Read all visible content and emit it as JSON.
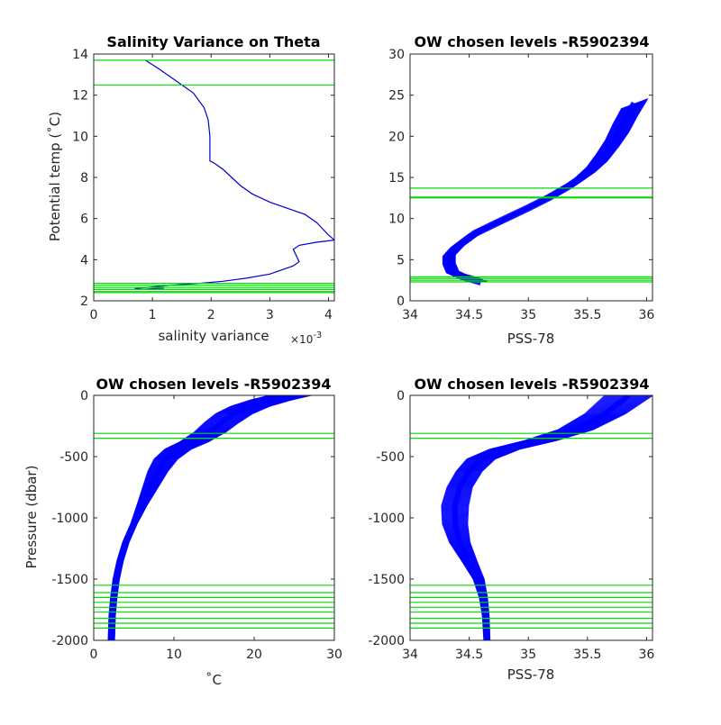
{
  "chart_data": [
    {
      "id": "p1",
      "type": "line",
      "title": "Salinity Variance on Theta",
      "xlabel": "salinity variance",
      "x_exponent_base": "×10",
      "x_exponent_power": "-3",
      "ylabel": "Potential temp (˚C)",
      "xlim": [
        0,
        0.0041
      ],
      "ylim": [
        2,
        14
      ],
      "xticks": [
        0,
        0.001,
        0.002,
        0.003,
        0.004
      ],
      "xticklabels": [
        "0",
        "1",
        "2",
        "3",
        "4"
      ],
      "yticks": [
        2,
        4,
        6,
        8,
        10,
        12,
        14
      ],
      "yticklabels": [
        "2",
        "4",
        "6",
        "8",
        "10",
        "12",
        "14"
      ],
      "colors": {
        "profile": "#0000cc",
        "levels": "#00dd00"
      },
      "series": [
        {
          "values": [
            [
              0.00088,
              13.7
            ],
            [
              0.0011,
              13.3
            ],
            [
              0.0013,
              12.9
            ],
            [
              0.0015,
              12.5
            ],
            [
              0.0017,
              12.1
            ],
            [
              0.0018,
              11.7
            ],
            [
              0.00188,
              11.4
            ],
            [
              0.00195,
              10.8
            ],
            [
              0.00198,
              10.0
            ],
            [
              0.00198,
              9.3
            ],
            [
              0.00198,
              8.8
            ],
            [
              0.00205,
              8.7
            ],
            [
              0.0022,
              8.4
            ],
            [
              0.00235,
              8.0
            ],
            [
              0.0025,
              7.6
            ],
            [
              0.0027,
              7.2
            ],
            [
              0.003,
              6.8
            ],
            [
              0.0033,
              6.5
            ],
            [
              0.0036,
              6.2
            ],
            [
              0.0038,
              5.8
            ],
            [
              0.0039,
              5.5
            ],
            [
              0.004,
              5.2
            ],
            [
              0.0041,
              4.95
            ],
            [
              0.0038,
              4.85
            ],
            [
              0.0035,
              4.7
            ],
            [
              0.0034,
              4.5
            ],
            [
              0.00345,
              4.2
            ],
            [
              0.0035,
              3.9
            ],
            [
              0.0034,
              3.7
            ],
            [
              0.003,
              3.3
            ],
            [
              0.0026,
              3.1
            ],
            [
              0.0022,
              2.95
            ],
            [
              0.0018,
              2.85
            ],
            [
              0.0013,
              2.75
            ],
            [
              0.0009,
              2.65
            ],
            [
              0.0007,
              2.6
            ],
            [
              0.0008,
              2.55
            ],
            [
              0.0012,
              2.62
            ],
            [
              0.0009,
              2.57
            ]
          ]
        }
      ],
      "levels": [
        13.7,
        12.5,
        2.85,
        2.75,
        2.65,
        2.55,
        2.45,
        2.4
      ]
    },
    {
      "id": "p2",
      "type": "line",
      "title": "OW chosen levels -R5902394",
      "xlabel": "PSS-78",
      "ylabel": "",
      "xlim": [
        34,
        36.05
      ],
      "ylim": [
        0,
        30
      ],
      "xticks": [
        34,
        34.5,
        35,
        35.5,
        36
      ],
      "xticklabels": [
        "34",
        "34.5",
        "35",
        "35.5",
        "36"
      ],
      "yticks": [
        0,
        5,
        10,
        15,
        20,
        25,
        30
      ],
      "yticklabels": [
        "0",
        "5",
        "10",
        "15",
        "20",
        "25",
        "30"
      ],
      "colors": {
        "profile": "#0000ff",
        "levels": "#00dd00"
      },
      "series": [
        {
          "values": [
            [
              34.6,
              2.3
            ],
            [
              34.45,
              2.9
            ],
            [
              34.36,
              3.5
            ],
            [
              34.33,
              4.5
            ],
            [
              34.33,
              5.5
            ],
            [
              34.4,
              6.6
            ],
            [
              34.55,
              8.2
            ],
            [
              34.78,
              9.8
            ],
            [
              35.0,
              11.3
            ],
            [
              35.18,
              12.6
            ],
            [
              35.35,
              14.0
            ],
            [
              35.48,
              15.3
            ],
            [
              35.58,
              16.6
            ],
            [
              35.67,
              18.3
            ],
            [
              35.75,
              20.0
            ],
            [
              35.82,
              22.0
            ],
            [
              35.9,
              24.0
            ]
          ]
        }
      ],
      "levels": [
        13.7,
        12.6,
        12.5,
        2.9,
        2.7,
        2.5,
        2.3
      ],
      "level_groups": [
        {
          "values": [
            12.5,
            12.6
          ],
          "weight": "thick"
        },
        {
          "values": [
            13.7
          ],
          "weight": "thin"
        },
        {
          "values": [
            2.3,
            2.5,
            2.7,
            2.9
          ],
          "weight": "thick"
        }
      ]
    },
    {
      "id": "p3",
      "type": "line",
      "title": "OW chosen levels -R5902394",
      "xlabel": "˚C",
      "ylabel": "Pressure (dbar)",
      "xlim": [
        0,
        30
      ],
      "ylim": [
        -2000,
        0
      ],
      "xticks": [
        0,
        10,
        20,
        30
      ],
      "xticklabels": [
        "0",
        "10",
        "20",
        "30"
      ],
      "yticks": [
        -2000,
        -1500,
        -1000,
        -500,
        0
      ],
      "yticklabels": [
        "-2000",
        "-1500",
        "-1000",
        "-500",
        "0"
      ],
      "colors": {
        "profile": "#0000ff",
        "levels": "#00dd00"
      },
      "series": [
        {
          "values": [
            [
              24.5,
              0
            ],
            [
              22.0,
              -40
            ],
            [
              19.5,
              -90
            ],
            [
              17.5,
              -150
            ],
            [
              16.0,
              -220
            ],
            [
              14.5,
              -300
            ],
            [
              12.5,
              -380
            ],
            [
              10.5,
              -440
            ],
            [
              9.0,
              -520
            ],
            [
              8.0,
              -620
            ],
            [
              7.0,
              -760
            ],
            [
              6.0,
              -900
            ],
            [
              5.0,
              -1050
            ],
            [
              4.0,
              -1200
            ],
            [
              3.3,
              -1350
            ],
            [
              2.8,
              -1500
            ],
            [
              2.5,
              -1650
            ],
            [
              2.3,
              -1800
            ],
            [
              2.2,
              -2000
            ]
          ]
        }
      ],
      "levels": [
        -310,
        -350,
        -1550,
        -1610,
        -1650,
        -1690,
        -1730,
        -1770,
        -1820,
        -1860,
        -1900
      ]
    },
    {
      "id": "p4",
      "type": "line",
      "title": "OW chosen levels -R5902394",
      "xlabel": "PSS-78",
      "ylabel": "",
      "xlim": [
        34,
        36.05
      ],
      "ylim": [
        -2000,
        0
      ],
      "xticks": [
        34,
        34.5,
        35,
        35.5,
        36
      ],
      "xticklabels": [
        "34",
        "34.5",
        "35",
        "35.5",
        "36"
      ],
      "yticks": [
        -2000,
        -1500,
        -1000,
        -500,
        0
      ],
      "yticklabels": [
        "-2000",
        "-1500",
        "-1000",
        "-500",
        "0"
      ],
      "colors": {
        "profile": "#0000ff",
        "levels": "#00dd00"
      },
      "series": [
        {
          "values": [
            [
              35.85,
              0
            ],
            [
              35.65,
              -150
            ],
            [
              35.4,
              -280
            ],
            [
              35.1,
              -370
            ],
            [
              34.8,
              -440
            ],
            [
              34.6,
              -520
            ],
            [
              34.5,
              -620
            ],
            [
              34.42,
              -750
            ],
            [
              34.38,
              -900
            ],
            [
              34.38,
              -1050
            ],
            [
              34.42,
              -1200
            ],
            [
              34.5,
              -1350
            ],
            [
              34.58,
              -1500
            ],
            [
              34.62,
              -1650
            ],
            [
              34.64,
              -1800
            ],
            [
              34.65,
              -2000
            ]
          ]
        }
      ],
      "levels": [
        -310,
        -350,
        -1550,
        -1610,
        -1650,
        -1690,
        -1730,
        -1770,
        -1820,
        -1860,
        -1900
      ]
    }
  ]
}
